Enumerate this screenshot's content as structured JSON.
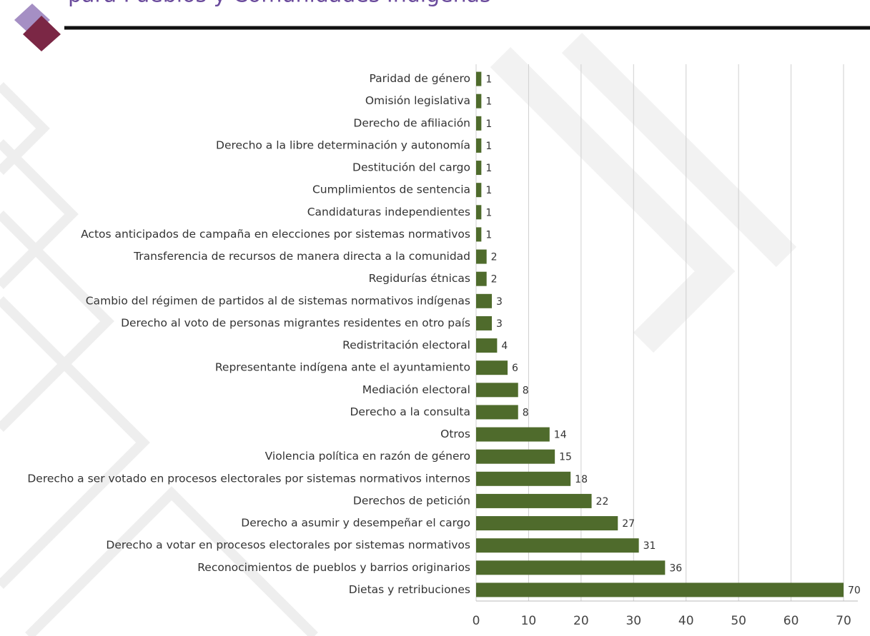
{
  "chart_data": {
    "type": "bar",
    "orientation": "horizontal",
    "title": "para Pueblos y Comunidades Indígenas",
    "categories": [
      "Paridad de género",
      "Omisión legislativa",
      "Derecho de afiliación",
      "Derecho a la libre determinación y autonomía",
      "Destitución del cargo",
      "Cumplimientos de sentencia",
      "Candidaturas independientes",
      "Actos anticipados de campaña en elecciones por sistemas normativos",
      "Transferencia de recursos de manera directa a la comunidad",
      "Regidurías étnicas",
      "Cambio del régimen de partidos al de sistemas normativos indígenas",
      "Derecho al voto de personas migrantes residentes en otro país",
      "Redistritación electoral",
      "Representante indígena ante el ayuntamiento",
      "Mediación electoral",
      "Derecho a la consulta",
      "Otros",
      "Violencia política en razón de género",
      "Derecho a ser votado en procesos electorales  por sistemas normativos internos",
      "Derechos de petición",
      "Derecho a asumir y desempeñar el cargo",
      "Derecho a votar en procesos electorales por sistemas normativos",
      "Reconocimientos de pueblos y barrios originarios",
      "Dietas y retribuciones"
    ],
    "values": [
      1,
      1,
      1,
      1,
      1,
      1,
      1,
      1,
      2,
      2,
      3,
      3,
      4,
      6,
      8,
      8,
      14,
      15,
      18,
      22,
      27,
      31,
      36,
      70
    ],
    "color": "#4f6b2c",
    "xlim": [
      0,
      70
    ],
    "xticks": [
      0,
      10,
      20,
      30,
      40,
      50,
      60,
      70
    ],
    "grid": true
  }
}
